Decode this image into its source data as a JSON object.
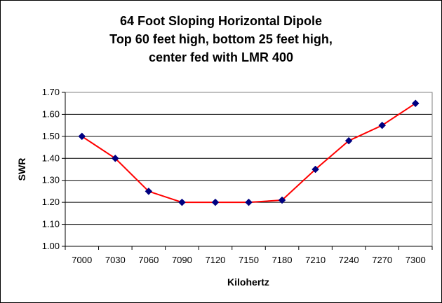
{
  "chart_data": {
    "type": "line",
    "title_lines": [
      "64 Foot Sloping Horizontal Dipole",
      "Top 60 feet high, bottom 25 feet high,",
      "center fed with LMR 400"
    ],
    "xlabel": "Kilohertz",
    "ylabel": "SWR",
    "x_ticks": [
      "7000",
      "7030",
      "7060",
      "7090",
      "7120",
      "7150",
      "7180",
      "7210",
      "7240",
      "7270",
      "7300"
    ],
    "y_ticks": [
      "1.00",
      "1.10",
      "1.20",
      "1.30",
      "1.40",
      "1.50",
      "1.60",
      "1.70"
    ],
    "ylim": [
      1.0,
      1.7
    ],
    "grid": "horizontal",
    "series": [
      {
        "x": [
          7000,
          7030,
          7060,
          7090,
          7120,
          7150,
          7180,
          7210,
          7240,
          7270,
          7300
        ],
        "values": [
          1.5,
          1.4,
          1.25,
          1.2,
          1.2,
          1.2,
          1.21,
          1.35,
          1.48,
          1.55,
          1.65
        ],
        "line_color": "#ff0000",
        "marker_color": "#000080",
        "marker": "diamond"
      }
    ]
  }
}
